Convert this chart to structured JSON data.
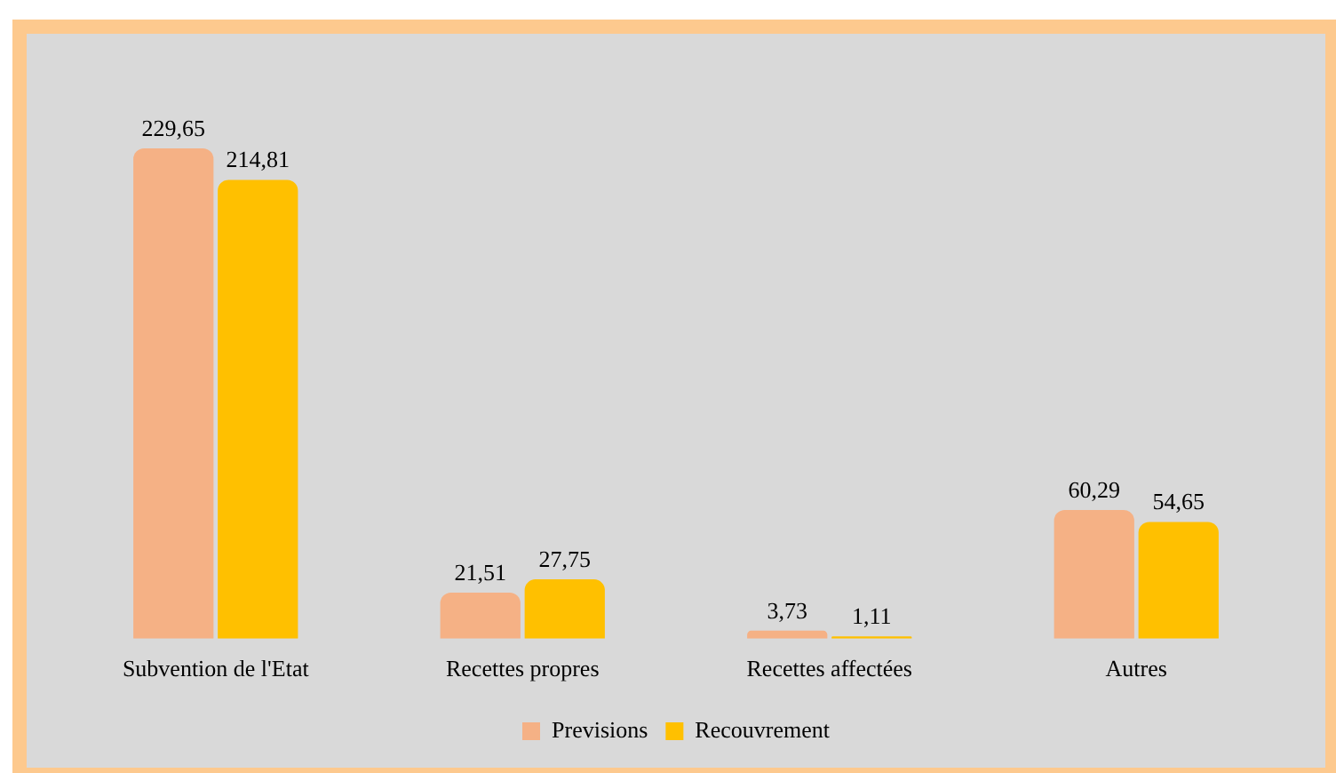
{
  "chart_data": {
    "type": "bar",
    "categories": [
      "Subvention de l'Etat",
      "Recettes propres",
      "Recettes affectées",
      "Autres"
    ],
    "series": [
      {
        "name": "Previsions",
        "color": "#f5b185",
        "values": [
          229.65,
          21.51,
          3.73,
          60.29
        ],
        "value_labels": [
          "229,65",
          "21,51",
          "3,73",
          "60,29"
        ]
      },
      {
        "name": "Recouvrement",
        "color": "#ffc000",
        "values": [
          214.81,
          27.75,
          1.11,
          54.65
        ],
        "value_labels": [
          "214,81",
          "27,75",
          "1,11",
          "54,65"
        ]
      }
    ],
    "legend": "bottom",
    "grid": false
  }
}
